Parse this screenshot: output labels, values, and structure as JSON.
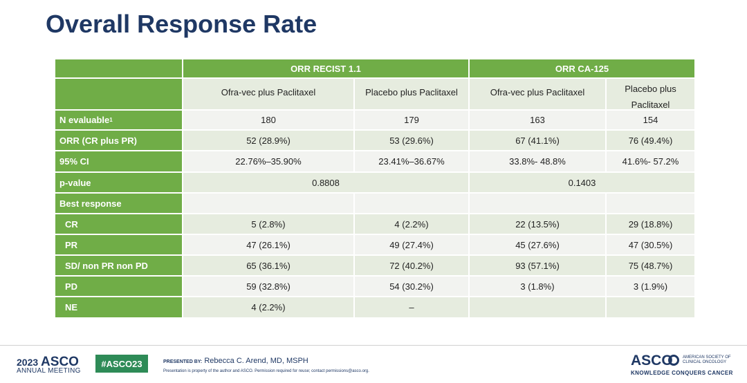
{
  "header": {
    "title": "Overall Response Rate"
  },
  "table": {
    "group_headers": [
      "ORR RECIST 1.1",
      "ORR CA-125"
    ],
    "column_headers": [
      "Ofra-vec plus Paclitaxel",
      "Placebo plus Paclitaxel",
      "Ofra-vec plus Paclitaxel",
      "Placebo plus Paclitaxel"
    ],
    "rows": [
      {
        "label": "N evaluable",
        "footnote": "1",
        "cells": [
          "180",
          "179",
          "163",
          "154"
        ]
      },
      {
        "label": "ORR (CR plus PR)",
        "cells": [
          "52 (28.9%)",
          "53 (29.6%)",
          "67 (41.1%)",
          "76 (49.4%)"
        ]
      },
      {
        "label": "95% CI",
        "cells": [
          "22.76%–35.90%",
          "23.41%–36.67%",
          "33.8%- 48.8%",
          "41.6%- 57.2%"
        ]
      },
      {
        "label": "p-value",
        "group_values": [
          "0.8808",
          "0.1403"
        ]
      }
    ],
    "best_response": {
      "label": "Best response",
      "rows": [
        {
          "label": "CR",
          "cells": [
            "5 (2.8%)",
            "4 (2.2%)",
            "22 (13.5%)",
            "29 (18.8%)"
          ]
        },
        {
          "label": "PR",
          "cells": [
            "47 (26.1%)",
            "49 (27.4%)",
            "45 (27.6%)",
            "47 (30.5%)"
          ]
        },
        {
          "label": "SD/ non PR non PD",
          "cells": [
            "65 (36.1%)",
            "72 (40.2%)",
            "93 (57.1%)",
            "75 (48.7%)"
          ]
        },
        {
          "label": "PD",
          "cells": [
            "59 (32.8%)",
            "54 (30.2%)",
            "3 (1.8%)",
            "3 (1.9%)"
          ]
        },
        {
          "label": "NE",
          "cells": [
            "4 (2.2%)",
            "–"
          ]
        }
      ]
    }
  },
  "footer": {
    "meeting_year": "2023",
    "meeting_brand": "ASCO",
    "meeting_name": "ANNUAL MEETING",
    "hashtag": "#ASCO23",
    "presented_by_label": "PRESENTED BY:",
    "presenter": "Rebecca C. Arend, MD, MSPH",
    "disclaimer": "Presentation is property of the author and ASCO. Permission required for reuse; contact permissions@asco.org.",
    "logo_text": "ASCO",
    "logo_subtitle": "AMERICAN SOCIETY OF CLINICAL ONCOLOGY",
    "tagline": "KNOWLEDGE CONQUERS CANCER"
  }
}
